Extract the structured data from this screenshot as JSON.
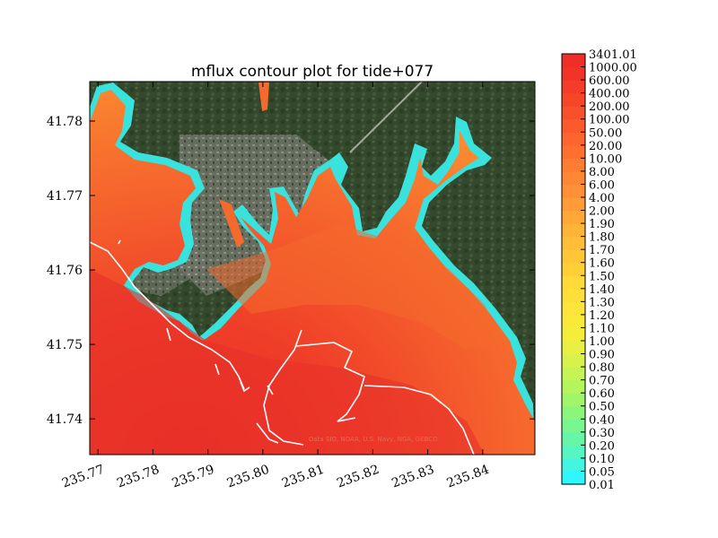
{
  "chart_data": {
    "type": "heatmap",
    "title": "mflux contour plot for tide+077",
    "x_ticks": [
      "235.77",
      "235.78",
      "235.79",
      "235.80",
      "235.81",
      "235.82",
      "235.83",
      "235.84"
    ],
    "x_tick_values": [
      235.77,
      235.78,
      235.79,
      235.8,
      235.81,
      235.82,
      235.83,
      235.84
    ],
    "xlim": [
      235.7685,
      235.8495
    ],
    "y_ticks": [
      "41.74",
      "41.75",
      "41.76",
      "41.77",
      "41.78"
    ],
    "y_tick_values": [
      41.74,
      41.75,
      41.76,
      41.77,
      41.78
    ],
    "ylim": [
      41.7352,
      41.7853
    ],
    "colorbar": {
      "levels": [
        "0.01",
        "0.05",
        "0.10",
        "0.20",
        "0.30",
        "0.40",
        "0.50",
        "0.60",
        "0.70",
        "0.80",
        "0.90",
        "1.00",
        "1.10",
        "1.20",
        "1.30",
        "1.40",
        "1.50",
        "1.60",
        "1.70",
        "1.80",
        "1.90",
        "2.00",
        "4.00",
        "6.00",
        "8.00",
        "10.00",
        "20.00",
        "50.00",
        "100.00",
        "200.00",
        "400.00",
        "600.00",
        "1000.00",
        "3401.01"
      ],
      "colors": [
        "#30f6ff",
        "#42f6e0",
        "#55f6c2",
        "#66f6a8",
        "#78f690",
        "#8af67c",
        "#a0f668",
        "#b4f55c",
        "#c6f454",
        "#d8f24c",
        "#e8f044",
        "#f4ee3a",
        "#fbe93a",
        "#fde43a",
        "#fedf3a",
        "#ffda38",
        "#ffcf38",
        "#ffc638",
        "#ffbd38",
        "#ffb438",
        "#ffa838",
        "#ff9c38",
        "#ff9036",
        "#ff8634",
        "#ff7c32",
        "#ff7030",
        "#fc652e",
        "#fa5a2c",
        "#f8502a",
        "#f64628",
        "#f43c28",
        "#f23428",
        "#f02e28"
      ]
    },
    "basemap_credit": "Data SIO, NOAA, U.S. Navy, NGA, GEBCO"
  },
  "colors": {
    "land": "#3b4f30",
    "land_town": "#7a7f74",
    "water_high": "#ec3a2a",
    "water_mid": "#f57a2c",
    "water_edge": "#36e6e0",
    "shoreline": "#ffffff"
  }
}
